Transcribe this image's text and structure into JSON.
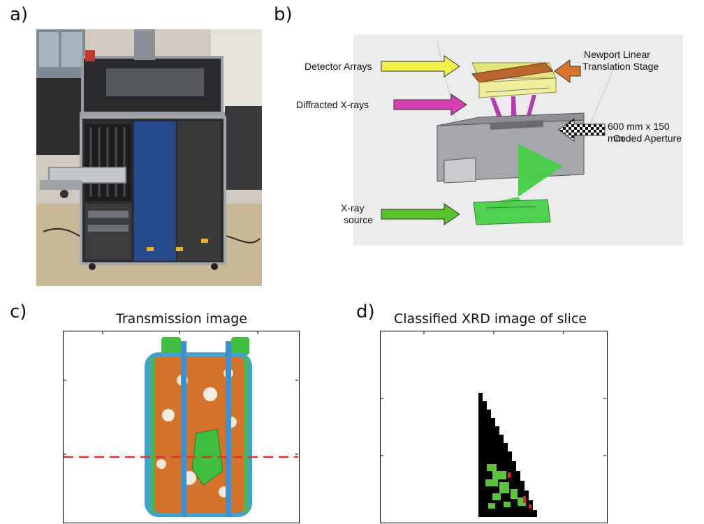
{
  "panels": {
    "a": {
      "letter": "a)"
    },
    "b": {
      "letter": "b)",
      "callouts": {
        "detector_arrays": "Detector Arrays",
        "diffracted_xrays": "Diffracted X-rays",
        "xray_source_line1": "X-ray",
        "xray_source_line2": "source",
        "stage_line1": "Newport Linear",
        "stage_line2": "Translation Stage",
        "aperture_line1": "600 mm x 150 mm",
        "aperture_line2": "Coded Aperture"
      },
      "arrow_colors": {
        "detector_arrays": "#f2f04a",
        "diffracted_xrays": "#d43fb1",
        "xray_source": "#57c22b",
        "stage": "#d9762c",
        "aperture": "checkered"
      }
    },
    "c": {
      "letter": "c)",
      "title": "Transmission image",
      "guide_line_color": "#e0322b"
    },
    "d": {
      "letter": "d)",
      "title": "Classified XRD image of slice",
      "colors": {
        "background": "#000000",
        "class_1": "#5cc23f",
        "class_2": "#d4262b"
      }
    }
  }
}
